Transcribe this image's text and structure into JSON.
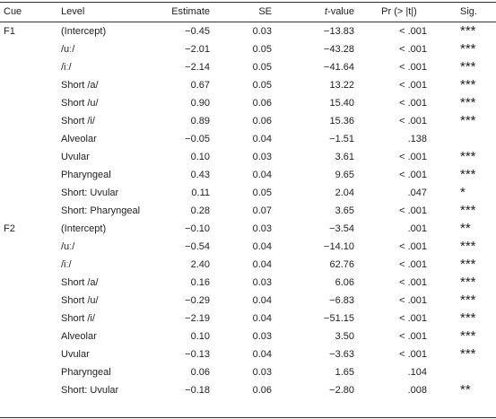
{
  "table": {
    "header": [
      "Cue",
      "Level",
      "Estimate",
      "SE",
      "t-value",
      "Pr (> |t|)",
      "Sig."
    ],
    "groups": [
      {
        "cue": "F1",
        "rows": [
          {
            "level": "(Intercept)",
            "estimate": "−0.45",
            "se": "0.03",
            "t": "−13.83",
            "p": "< .001",
            "sig": "***"
          },
          {
            "level": "/uː/",
            "estimate": "−2.01",
            "se": "0.05",
            "t": "−43.28",
            "p": "< .001",
            "sig": "***"
          },
          {
            "level": "/iː/",
            "estimate": "−2.14",
            "se": "0.05",
            "t": "−41.64",
            "p": "< .001",
            "sig": "***"
          },
          {
            "level": "Short /a/",
            "estimate": "0.67",
            "se": "0.05",
            "t": "13.22",
            "p": "< .001",
            "sig": "***"
          },
          {
            "level": "Short /u/",
            "estimate": "0.90",
            "se": "0.06",
            "t": "15.40",
            "p": "< .001",
            "sig": "***"
          },
          {
            "level": "Short /i/",
            "estimate": "0.89",
            "se": "0.06",
            "t": "15.36",
            "p": "< .001",
            "sig": "***"
          },
          {
            "level": "Alveolar",
            "estimate": "−0.05",
            "se": "0.04",
            "t": "−1.51",
            "p": ".138"
          },
          {
            "level": "Uvular",
            "estimate": "0.10",
            "se": "0.03",
            "t": "3.61",
            "p": "< .001",
            "sig": "***"
          },
          {
            "level": "Pharyngeal",
            "estimate": "0.43",
            "se": "0.04",
            "t": "9.65",
            "p": "< .001",
            "sig": "***"
          },
          {
            "level": "Short: Uvular",
            "estimate": "0.11",
            "se": "0.05",
            "t": "2.04",
            "p": ".047",
            "sig": "*"
          },
          {
            "level": "Short: Pharyngeal",
            "estimate": "0.28",
            "se": "0.07",
            "t": "3.65",
            "p": "< .001",
            "sig": "***"
          }
        ]
      },
      {
        "cue": "F2",
        "rows": [
          {
            "level": "(Intercept)",
            "estimate": "−0.10",
            "se": "0.03",
            "t": "−3.54",
            "p": ".001",
            "sig": "**"
          },
          {
            "level": "/uː/",
            "estimate": "−0.54",
            "se": "0.04",
            "t": "−14.10",
            "p": "< .001",
            "sig": "***"
          },
          {
            "level": "/iː/",
            "estimate": "2.40",
            "se": "0.04",
            "t": "62.76",
            "p": "< .001",
            "sig": "***"
          },
          {
            "level": "Short /a/",
            "estimate": "0.16",
            "se": "0.03",
            "t": "6.06",
            "p": "< .001",
            "sig": "***"
          },
          {
            "level": "Short /u/",
            "estimate": "−0.29",
            "se": "0.04",
            "t": "−6.83",
            "p": "< .001",
            "sig": "***"
          },
          {
            "level": "Short /i/",
            "estimate": "−2.19",
            "se": "0.04",
            "t": "−51.15",
            "p": "< .001",
            "sig": "***"
          },
          {
            "level": "Alveolar",
            "estimate": "0.10",
            "se": "0.03",
            "t": "3.50",
            "p": "< .001",
            "sig": "***"
          },
          {
            "level": "Uvular",
            "estimate": "−0.13",
            "se": "0.04",
            "t": "−3.63",
            "p": "< .001",
            "sig": "***"
          },
          {
            "level": "Pharyngeal",
            "estimate": "0.06",
            "se": "0.03",
            "t": "1.65",
            "p": ".104"
          },
          {
            "level": "Short: Uvular",
            "estimate": "−0.18",
            "se": "0.06",
            "t": "−2.80",
            "p": ".008",
            "sig": "**"
          }
        ]
      }
    ]
  }
}
